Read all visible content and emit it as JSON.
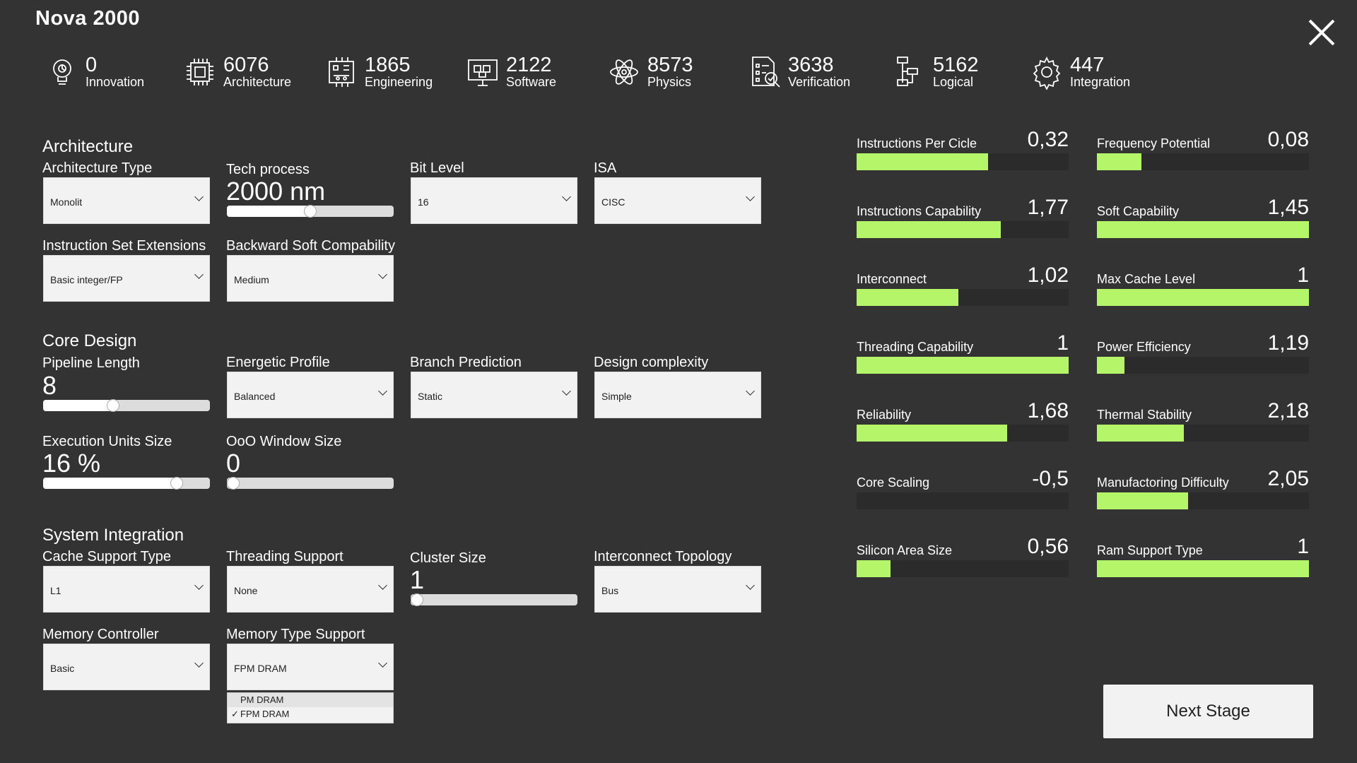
{
  "title": "Nova 2000",
  "resources": [
    {
      "icon": "lightbulb-gear-icon",
      "value": "0",
      "label": "Innovation"
    },
    {
      "icon": "chip-icon",
      "value": "6076",
      "label": "Architecture"
    },
    {
      "icon": "circuit-board-icon",
      "value": "1865",
      "label": "Engineering"
    },
    {
      "icon": "monitor-cubes-icon",
      "value": "2122",
      "label": "Software"
    },
    {
      "icon": "atom-icon",
      "value": "8573",
      "label": "Physics"
    },
    {
      "icon": "document-check-icon",
      "value": "3638",
      "label": "Verification"
    },
    {
      "icon": "flowchart-icon",
      "value": "5162",
      "label": "Logical"
    },
    {
      "icon": "gear-icon",
      "value": "447",
      "label": "Integration"
    }
  ],
  "architecture": {
    "heading": "Architecture",
    "arch_type": {
      "label": "Architecture Type",
      "value": "Monolit"
    },
    "tech_process": {
      "label": "Tech process",
      "value": "2000 nm",
      "level": 0.5
    },
    "bit_level": {
      "label": "Bit Level",
      "value": "16"
    },
    "isa": {
      "label": "ISA",
      "value": "CISC"
    },
    "ise": {
      "label": "Instruction Set Extensions",
      "value": "Basic integer/FP"
    },
    "backward": {
      "label": "Backward Soft Compability",
      "value": "Medium"
    }
  },
  "core": {
    "heading": "Core Design",
    "pipeline": {
      "label": "Pipeline Length",
      "value": "8",
      "level": 0.42
    },
    "energetic": {
      "label": "Energetic Profile",
      "value": "Balanced"
    },
    "branch": {
      "label": "Branch Prediction",
      "value": "Static"
    },
    "complexity": {
      "label": "Design complexity",
      "value": "Simple"
    },
    "exec_units": {
      "label": "Execution Units Size",
      "value": "16 %",
      "level": 0.8
    },
    "ooo": {
      "label": "OoO Window Size",
      "value": "0",
      "level": 0.0
    }
  },
  "system": {
    "heading": "System Integration",
    "cache": {
      "label": "Cache Support Type",
      "value": "L1"
    },
    "threading": {
      "label": "Threading Support",
      "value": "None"
    },
    "cluster": {
      "label": "Cluster Size",
      "value": "1",
      "level": 0.0
    },
    "topology": {
      "label": "Interconnect Topology",
      "value": "Bus"
    },
    "memctrl": {
      "label": "Memory Controller",
      "value": "Basic"
    },
    "memtype": {
      "label": "Memory Type Support",
      "value": "FPM DRAM",
      "options": [
        "PM DRAM",
        "FPM DRAM"
      ],
      "check": "✓"
    }
  },
  "stats": [
    {
      "label": "Instructions Per Cicle",
      "value": "0,32",
      "fill": 0.62
    },
    {
      "label": "Frequency Potential",
      "value": "0,08",
      "fill": 0.21
    },
    {
      "label": "Instructions Capability",
      "value": "1,77",
      "fill": 0.68
    },
    {
      "label": "Soft Capability",
      "value": "1,45",
      "fill": 1.0
    },
    {
      "label": "Interconnect",
      "value": "1,02",
      "fill": 0.48
    },
    {
      "label": "Max Cache Level",
      "value": "1",
      "fill": 1.0
    },
    {
      "label": "Threading Capability",
      "value": "1",
      "fill": 1.0
    },
    {
      "label": "Power Efficiency",
      "value": "1,19",
      "fill": 0.13
    },
    {
      "label": "Reliability",
      "value": "1,68",
      "fill": 0.71
    },
    {
      "label": "Thermal Stability",
      "value": "2,18",
      "fill": 0.41
    },
    {
      "label": "Core Scaling",
      "value": "-0,5",
      "fill": 0.0
    },
    {
      "label": "Manufactoring Difficulty",
      "value": "2,05",
      "fill": 0.43
    },
    {
      "label": "Silicon Area Size",
      "value": "0,56",
      "fill": 0.16
    },
    {
      "label": "Ram Support Type",
      "value": "1",
      "fill": 1.0
    }
  ],
  "next_label": "Next Stage"
}
